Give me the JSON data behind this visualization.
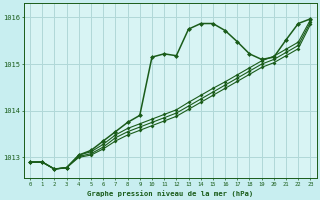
{
  "title": "Graphe pression niveau de la mer (hPa)",
  "bg_color": "#c8eef0",
  "plot_bg_color": "#d8f4f4",
  "line_color": "#1a5c1a",
  "grid_color": "#b0d8d8",
  "text_color": "#1a5c1a",
  "xlim": [
    -0.5,
    23.5
  ],
  "ylim": [
    1012.55,
    1016.3
  ],
  "yticks": [
    1013,
    1014,
    1015,
    1016
  ],
  "xticks": [
    0,
    1,
    2,
    3,
    4,
    5,
    6,
    7,
    8,
    9,
    10,
    11,
    12,
    13,
    14,
    15,
    16,
    17,
    18,
    19,
    20,
    21,
    22,
    23
  ],
  "hours": [
    0,
    1,
    2,
    3,
    4,
    5,
    6,
    7,
    8,
    9,
    10,
    11,
    12,
    13,
    14,
    15,
    16,
    17,
    18,
    19,
    20,
    21,
    22,
    23
  ],
  "line1": [
    1012.9,
    1012.9,
    1012.75,
    1012.78,
    1013.05,
    1013.15,
    1013.35,
    1013.55,
    1013.75,
    1013.9,
    1015.15,
    1015.22,
    1015.18,
    1015.75,
    1015.87,
    1015.87,
    1015.72,
    1015.48,
    1015.22,
    1015.1,
    1015.15,
    1015.52,
    1015.87,
    1015.97
  ],
  "line2": [
    1012.9,
    1012.9,
    1012.75,
    1012.78,
    1013.05,
    1013.12,
    1013.28,
    1013.48,
    1013.62,
    1013.72,
    1013.82,
    1013.92,
    1014.02,
    1014.18,
    1014.33,
    1014.48,
    1014.62,
    1014.77,
    1014.92,
    1015.07,
    1015.17,
    1015.32,
    1015.47,
    1015.95
  ],
  "line3": [
    1012.9,
    1012.9,
    1012.75,
    1012.78,
    1013.02,
    1013.08,
    1013.22,
    1013.42,
    1013.55,
    1013.65,
    1013.75,
    1013.85,
    1013.95,
    1014.1,
    1014.25,
    1014.4,
    1014.55,
    1014.7,
    1014.85,
    1015.0,
    1015.1,
    1015.25,
    1015.4,
    1015.9
  ],
  "line4": [
    1012.9,
    1012.9,
    1012.75,
    1012.78,
    1013.0,
    1013.05,
    1013.18,
    1013.35,
    1013.48,
    1013.58,
    1013.68,
    1013.78,
    1013.88,
    1014.03,
    1014.18,
    1014.33,
    1014.48,
    1014.63,
    1014.78,
    1014.93,
    1015.03,
    1015.18,
    1015.33,
    1015.85
  ]
}
